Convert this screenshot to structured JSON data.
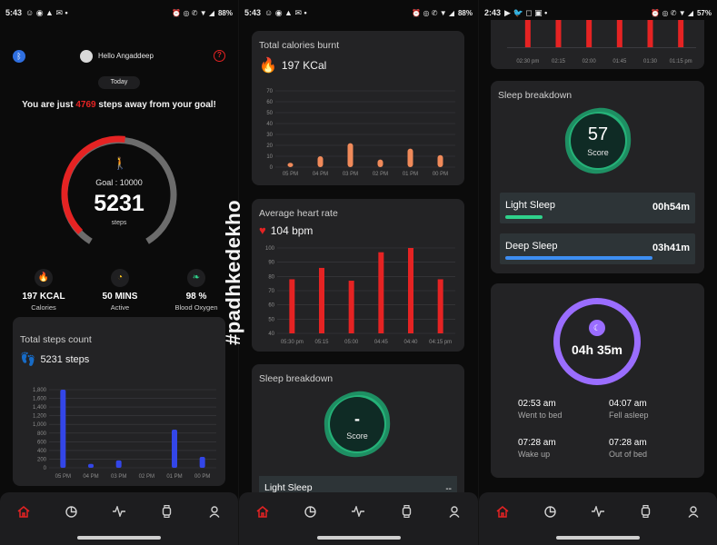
{
  "status_bars": [
    {
      "time": "5:43",
      "battery": "88%"
    },
    {
      "time": "5:43",
      "battery": "88%"
    },
    {
      "time": "2:43",
      "battery": "57%"
    }
  ],
  "home": {
    "greeting": "Hello Angaddeep",
    "today_label": "Today",
    "goal_prefix": "You are just ",
    "steps_remaining": "4769",
    "goal_suffix": " steps away from your goal!",
    "goal_label": "Goal : 10000",
    "steps_value": "5231",
    "steps_unit": "steps",
    "progress_fraction": 0.5231,
    "stats": [
      {
        "value": "197 KCAL",
        "label": "Calories",
        "icon": "fire-icon",
        "color": "#ff6a2a"
      },
      {
        "value": "50 MINS",
        "label": "Active",
        "icon": "clock-icon",
        "color": "#ffc51c"
      },
      {
        "value": "98 %",
        "label": "Blood Oxygen",
        "icon": "leaf-icon",
        "color": "#2fd18b"
      }
    ],
    "steps_card": {
      "title": "Total steps count",
      "total": "5231 steps"
    }
  },
  "chart_data": [
    {
      "type": "bar",
      "title": "Total steps count",
      "categories": [
        "05 PM",
        "04 PM",
        "03 PM",
        "02 PM",
        "01 PM",
        "00 PM"
      ],
      "values": [
        1800,
        90,
        170,
        0,
        880,
        250
      ],
      "ylim": [
        0,
        1800
      ],
      "yticks": [
        "0",
        "200",
        "400",
        "600",
        "800",
        "1,000",
        "1,200",
        "1,400",
        "1,600",
        "1,800"
      ],
      "color": "#3346e8"
    },
    {
      "type": "bar",
      "title": "Total calories burnt",
      "categories": [
        "05 PM",
        "04 PM",
        "03 PM",
        "02 PM",
        "01 PM",
        "00 PM"
      ],
      "values": [
        4,
        10,
        22,
        7,
        17,
        11
      ],
      "ylim": [
        0,
        70
      ],
      "yticks": [
        "0",
        "10",
        "20",
        "30",
        "40",
        "50",
        "60",
        "70"
      ],
      "color": "#f08a5a"
    },
    {
      "type": "bar",
      "title": "Average heart rate",
      "categories": [
        "05:30 pm",
        "05:15",
        "05:00",
        "04:45",
        "04:40",
        "04:15 pm"
      ],
      "values": [
        78,
        86,
        77,
        97,
        100,
        78
      ],
      "ylim": [
        40,
        100
      ],
      "yticks": [
        "40",
        "50",
        "60",
        "70",
        "80",
        "90",
        "100"
      ],
      "color": "#e52323"
    },
    {
      "type": "bar",
      "title": "",
      "categories": [
        "02:30 pm",
        "02:15",
        "02:00",
        "01:45",
        "01:30",
        "01:15 pm"
      ],
      "values": [
        1,
        1,
        1,
        1,
        1,
        1
      ],
      "color": "#e52323"
    }
  ],
  "calories_card": {
    "title": "Total calories burnt",
    "value": "197 KCal"
  },
  "heart_card": {
    "title": "Average heart rate",
    "value": "104 bpm"
  },
  "sleep_empty": {
    "title": "Sleep breakdown",
    "score_value": "-",
    "score_label": "Score",
    "light_label": "Light Sleep",
    "light_value": "--"
  },
  "sleep_full": {
    "title": "Sleep breakdown",
    "score_value": "57",
    "score_label": "Score",
    "light": {
      "label": "Light Sleep",
      "value": "00h54m",
      "fraction": 0.2
    },
    "deep": {
      "label": "Deep Sleep",
      "value": "03h41m",
      "fraction": 0.8
    }
  },
  "sleep_total": {
    "duration": "04h 35m",
    "entries": [
      {
        "time": "02:53 am",
        "label": "Went to bed"
      },
      {
        "time": "04:07 am",
        "label": "Fell asleep"
      },
      {
        "time": "07:28 am",
        "label": "Wake up"
      },
      {
        "time": "07:28 am",
        "label": "Out of bed"
      }
    ]
  },
  "watermark": "#padhkedekho",
  "colors": {
    "accent_red": "#e52323",
    "steps_blue": "#3346e8",
    "sleep_green": "#2fd18b",
    "sleep_purple": "#9a6dff"
  },
  "nav_icons": [
    "home-icon",
    "stats-icon",
    "activity-icon",
    "watch-icon",
    "profile-icon"
  ]
}
